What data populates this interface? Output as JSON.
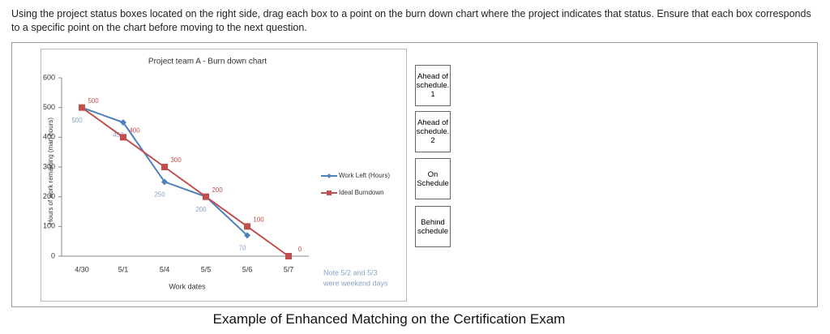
{
  "instructions": "Using the project status boxes located on the right side, drag each box to a point on the burn down chart where the project indicates that status. Ensure that each box corresponds to a specific point on the chart before moving to the next question.",
  "chart_data": {
    "type": "line",
    "title": "Project team A - Burn down chart",
    "x_label": "Work dates",
    "y_label": "Hours of work remaining (man hours)",
    "categories": [
      "4/30",
      "5/1",
      "5/4",
      "5/5",
      "5/6",
      "5/7"
    ],
    "series": [
      {
        "name": "Work Left (Hours)",
        "color": "#4f81bd",
        "values": [
          500,
          450,
          250,
          200,
          70,
          null
        ]
      },
      {
        "name": "Ideal Burndown",
        "color": "#c0504d",
        "values": [
          500,
          400,
          300,
          200,
          100,
          0
        ]
      }
    ],
    "ylim": [
      0,
      600
    ],
    "yticks": [
      0,
      100,
      200,
      300,
      400,
      500,
      600
    ],
    "legend": "right",
    "note": [
      "Note  5/2 and 5/3",
      "were weekend days"
    ]
  },
  "status_boxes": [
    "Ahead of schedule. 1",
    "Ahead of schedule. 2",
    "On Schedule",
    "Behind schedule"
  ],
  "caption": "Example of Enhanced Matching on the Certification Exam"
}
